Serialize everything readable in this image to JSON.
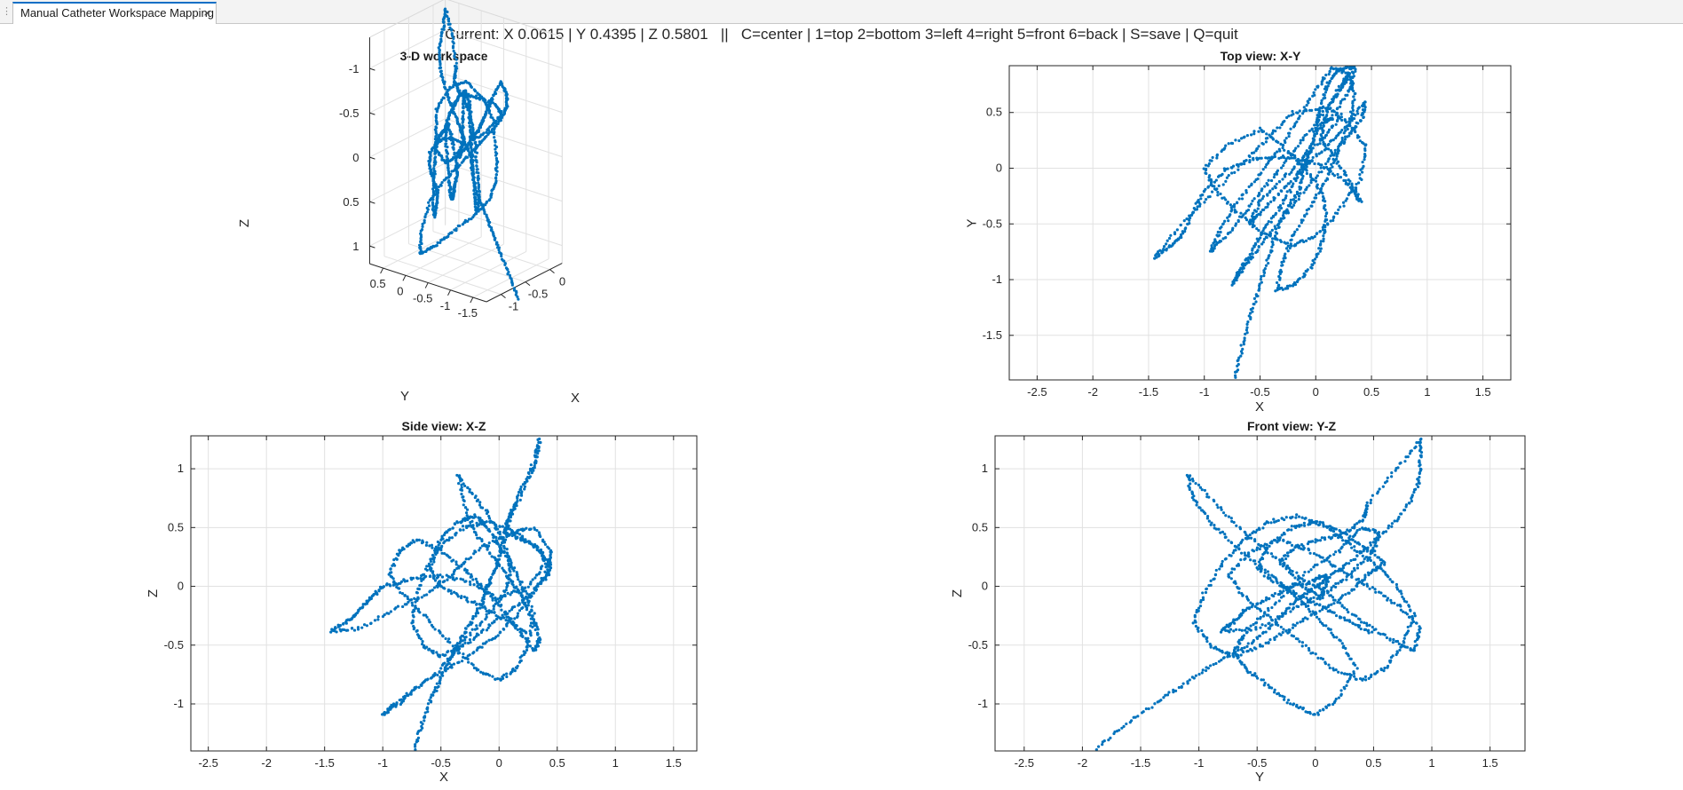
{
  "tab": {
    "title": "Manual Catheter Workspace Mapping",
    "close_glyph": "×",
    "grip_glyph": "⋮"
  },
  "status": {
    "current_text": "Current: X 0.0615 | Y 0.4395 | Z 0.5801   ||   C=center | 1=top 2=bottom 3=left 4=right 5=front 6=back | S=save | Q=quit"
  },
  "colors": {
    "marker": "#0072BD",
    "grid": "#e1e1e1",
    "axis": "#262626",
    "pane_line": "#d9d9d9"
  },
  "chart_data": [
    {
      "type": "scatter3d",
      "title": "3-D workspace",
      "xlabel": "X",
      "ylabel": "Y",
      "zlabel": "Z",
      "xticks": [
        "0",
        "-0.5",
        "-1"
      ],
      "yticks": [
        "0.5",
        "0",
        "-0.5",
        "-1",
        "-1.5"
      ],
      "zticks": [
        "1",
        "0.5",
        "0",
        "-0.5",
        "-1"
      ],
      "grid": true
    },
    {
      "type": "scatter",
      "title": "Top view: X-Y",
      "xlabel": "X",
      "ylabel": "Y",
      "xlim": [
        -2.75,
        1.75
      ],
      "ylim": [
        -1.9,
        0.92
      ],
      "xticks": [
        -2.5,
        -2,
        -1.5,
        -1,
        -0.5,
        0,
        0.5,
        1,
        1.5
      ],
      "yticks": [
        0.5,
        0,
        -0.5,
        -1,
        -1.5
      ],
      "xticklabels": [
        "-2.5",
        "-2",
        "-1.5",
        "-1",
        "-0.5",
        "0",
        "0.5",
        "1",
        "1.5"
      ],
      "yticklabels": [
        "0.5",
        "0",
        "-0.5",
        "-1",
        "-1.5"
      ],
      "grid": true
    },
    {
      "type": "scatter",
      "title": "Side view: X-Z",
      "xlabel": "X",
      "ylabel": "Z",
      "xlim": [
        -2.65,
        1.7
      ],
      "ylim": [
        -1.4,
        1.28
      ],
      "xticks": [
        -2.5,
        -2,
        -1.5,
        -1,
        -0.5,
        0,
        0.5,
        1,
        1.5
      ],
      "yticks": [
        1,
        0.5,
        0,
        -0.5,
        -1
      ],
      "xticklabels": [
        "-2.5",
        "-2",
        "-1.5",
        "-1",
        "-0.5",
        "0",
        "0.5",
        "1",
        "1.5"
      ],
      "yticklabels": [
        "1",
        "0.5",
        "0",
        "-0.5",
        "-1"
      ],
      "grid": true
    },
    {
      "type": "scatter",
      "title": "Front view: Y-Z",
      "xlabel": "Y",
      "ylabel": "Z",
      "xlim": [
        -2.75,
        1.8
      ],
      "ylim": [
        -1.4,
        1.28
      ],
      "xticks": [
        -2.5,
        -2,
        -1.5,
        -1,
        -0.5,
        0,
        0.5,
        1,
        1.5
      ],
      "yticks": [
        1,
        0.5,
        0,
        -0.5,
        -1
      ],
      "xticklabels": [
        "-2.5",
        "-2",
        "-1.5",
        "-1",
        "-0.5",
        "0",
        "0.5",
        "1",
        "1.5"
      ],
      "yticklabels": [
        "1",
        "0.5",
        "0",
        "-0.5",
        "-1"
      ],
      "grid": true
    }
  ],
  "trajectory": [
    [
      -0.72,
      -1.88,
      -1.38
    ],
    [
      -0.66,
      -1.6,
      -1.15
    ],
    [
      -0.58,
      -1.3,
      -0.95
    ],
    [
      -0.5,
      -1.05,
      -0.78
    ],
    [
      -0.42,
      -0.8,
      -0.62
    ],
    [
      -0.35,
      -0.55,
      -0.48
    ],
    [
      -0.25,
      -0.35,
      -0.32
    ],
    [
      -0.15,
      -0.2,
      -0.15
    ],
    [
      -0.1,
      0.0,
      0.0
    ],
    [
      -0.05,
      0.15,
      0.1
    ],
    [
      0.0,
      0.35,
      0.25
    ],
    [
      0.05,
      0.55,
      0.42
    ],
    [
      0.1,
      0.75,
      0.62
    ],
    [
      0.2,
      0.88,
      0.85
    ],
    [
      0.3,
      0.9,
      1.05
    ],
    [
      0.35,
      0.91,
      1.25
    ],
    [
      0.3,
      0.7,
      1.0
    ],
    [
      0.15,
      0.45,
      0.7
    ],
    [
      0.08,
      0.42,
      0.58
    ],
    [
      0.05,
      0.25,
      0.45
    ],
    [
      0.2,
      0.05,
      0.4
    ],
    [
      0.35,
      -0.2,
      0.32
    ],
    [
      0.4,
      -0.3,
      0.2
    ],
    [
      0.25,
      -0.1,
      0.0
    ],
    [
      0.0,
      0.05,
      -0.1
    ],
    [
      -0.3,
      0.1,
      0.05
    ],
    [
      -0.55,
      0.08,
      0.1
    ],
    [
      -0.8,
      0.0,
      0.05
    ],
    [
      -1.0,
      -0.2,
      0.0
    ],
    [
      -1.1,
      -0.4,
      -0.1
    ],
    [
      -1.2,
      -0.6,
      -0.2
    ],
    [
      -1.3,
      -0.7,
      -0.3
    ],
    [
      -1.45,
      -0.8,
      -0.38
    ],
    [
      -1.2,
      -0.5,
      -0.36
    ],
    [
      -0.9,
      -0.2,
      -0.2
    ],
    [
      -0.6,
      0.1,
      -0.05
    ],
    [
      -0.4,
      0.3,
      0.1
    ],
    [
      -0.2,
      0.5,
      0.3
    ],
    [
      0.1,
      0.55,
      0.45
    ],
    [
      0.3,
      0.4,
      0.5
    ],
    [
      0.45,
      0.2,
      0.3
    ],
    [
      0.4,
      -0.1,
      0.1
    ],
    [
      0.2,
      -0.4,
      -0.2
    ],
    [
      0.0,
      -0.6,
      -0.4
    ],
    [
      -0.2,
      -0.7,
      -0.55
    ],
    [
      -0.45,
      -0.6,
      -0.7
    ],
    [
      -0.7,
      -0.4,
      -0.85
    ],
    [
      -0.9,
      -0.2,
      -1.0
    ],
    [
      -1.0,
      0.0,
      -1.1
    ],
    [
      -0.8,
      0.2,
      -0.95
    ],
    [
      -0.5,
      0.35,
      -0.7
    ],
    [
      -0.3,
      0.2,
      -0.45
    ],
    [
      -0.1,
      0.0,
      -0.25
    ],
    [
      0.05,
      -0.2,
      -0.05
    ],
    [
      0.1,
      -0.45,
      0.15
    ],
    [
      0.05,
      -0.7,
      0.35
    ],
    [
      -0.05,
      -0.9,
      0.55
    ],
    [
      -0.2,
      -1.05,
      0.75
    ],
    [
      -0.35,
      -1.1,
      0.95
    ],
    [
      -0.3,
      -0.85,
      0.7
    ],
    [
      -0.2,
      -0.6,
      0.45
    ],
    [
      -0.05,
      -0.35,
      0.25
    ],
    [
      0.1,
      -0.1,
      0.05
    ],
    [
      0.2,
      0.15,
      -0.1
    ],
    [
      0.3,
      0.4,
      -0.3
    ],
    [
      0.35,
      0.65,
      -0.45
    ],
    [
      0.3,
      0.85,
      -0.55
    ],
    [
      0.15,
      0.9,
      -0.35
    ],
    [
      0.0,
      0.7,
      -0.15
    ],
    [
      -0.15,
      0.45,
      0.0
    ],
    [
      -0.3,
      0.2,
      0.15
    ],
    [
      -0.5,
      -0.05,
      0.3
    ],
    [
      -0.7,
      -0.3,
      0.4
    ],
    [
      -0.85,
      -0.55,
      0.3
    ],
    [
      -0.95,
      -0.75,
      0.1
    ],
    [
      -0.8,
      -0.6,
      -0.1
    ],
    [
      -0.6,
      -0.35,
      -0.3
    ],
    [
      -0.4,
      -0.1,
      -0.5
    ],
    [
      -0.2,
      0.15,
      -0.7
    ],
    [
      0.0,
      0.4,
      -0.8
    ],
    [
      0.15,
      0.6,
      -0.7
    ],
    [
      0.25,
      0.75,
      -0.5
    ],
    [
      0.3,
      0.85,
      -0.25
    ],
    [
      0.2,
      0.7,
      0.0
    ],
    [
      0.1,
      0.5,
      0.2
    ],
    [
      0.0,
      0.3,
      0.35
    ],
    [
      -0.1,
      0.1,
      0.5
    ],
    [
      -0.2,
      -0.15,
      0.6
    ],
    [
      -0.35,
      -0.4,
      0.55
    ],
    [
      -0.5,
      -0.6,
      0.4
    ],
    [
      -0.6,
      -0.8,
      0.2
    ],
    [
      -0.7,
      -0.95,
      -0.05
    ],
    [
      -0.75,
      -1.05,
      -0.3
    ],
    [
      -0.65,
      -0.9,
      -0.5
    ],
    [
      -0.5,
      -0.7,
      -0.6
    ],
    [
      -0.3,
      -0.45,
      -0.5
    ],
    [
      -0.1,
      -0.2,
      -0.35
    ],
    [
      0.1,
      0.05,
      -0.2
    ],
    [
      0.3,
      0.3,
      -0.05
    ],
    [
      0.42,
      0.45,
      0.1
    ],
    [
      0.44,
      0.6,
      0.2
    ],
    [
      0.3,
      0.4,
      0.35
    ],
    [
      0.1,
      0.2,
      0.48
    ],
    [
      -0.1,
      0.0,
      0.55
    ],
    [
      -0.3,
      -0.2,
      0.5
    ],
    [
      -0.5,
      -0.4,
      0.35
    ],
    [
      -0.6,
      -0.5,
      0.15
    ],
    [
      -0.5,
      -0.3,
      0.0
    ],
    [
      -0.3,
      -0.1,
      -0.1
    ],
    [
      -0.1,
      0.1,
      -0.2
    ],
    [
      0.1,
      0.3,
      -0.3
    ],
    [
      0.25,
      0.5,
      -0.4
    ]
  ]
}
